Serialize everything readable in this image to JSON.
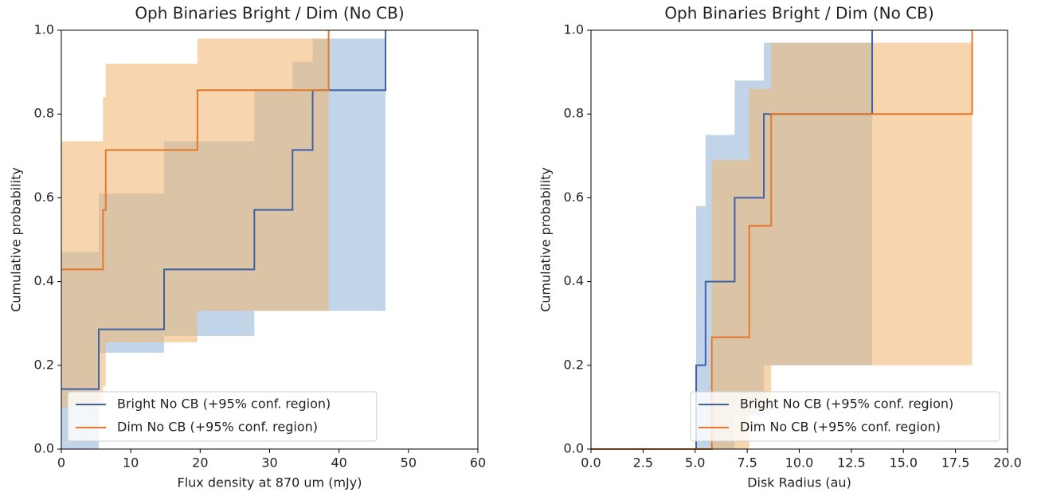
{
  "chart_data": [
    {
      "type": "step",
      "title": "Oph Binaries Bright / Dim (No CB)",
      "xlabel": "Flux density at 870 um (mJy)",
      "ylabel": "Cumulative probability",
      "xlim": [
        0,
        60
      ],
      "ylim": [
        0,
        1
      ],
      "xticks": [
        0,
        10,
        20,
        30,
        40,
        50,
        60
      ],
      "yticks": [
        {
          "value": 0,
          "label": "0.0"
        },
        0.2,
        0.4,
        0.6,
        0.8,
        {
          "value": 1,
          "label": "1.0"
        }
      ],
      "legend": "lower left",
      "series": [
        {
          "name": "Bright No CB (+95% conf. region)",
          "color": "#3d62a8",
          "band_color": "#8fb0d6",
          "x": [
            0,
            5.4,
            14.8,
            27.8,
            33.3,
            36.2,
            46.7
          ],
          "values": [
            0.143,
            0.286,
            0.429,
            0.571,
            0.714,
            0.857,
            1.0
          ],
          "lower": [
            0.0,
            0.23,
            0.27,
            0.33,
            0.33,
            0.33,
            0.33
          ],
          "upper": [
            0.47,
            0.61,
            0.735,
            0.86,
            0.925,
            0.98,
            0.98
          ]
        },
        {
          "name": "Dim No CB (+95% conf. region)",
          "color": "#e6772b",
          "band_color": "#f0b46e",
          "x": [
            0,
            6.0,
            6.4,
            19.6,
            38.5
          ],
          "values": [
            0.429,
            0.571,
            0.714,
            0.857,
            1.0
          ],
          "lower": [
            0.1,
            0.15,
            0.255,
            0.33,
            0.33
          ],
          "upper": [
            0.735,
            0.84,
            0.92,
            0.98,
            0.98
          ]
        }
      ]
    },
    {
      "type": "step",
      "title": "Oph Binaries Bright / Dim (No CB)",
      "xlabel": "Disk Radius (au)",
      "ylabel": "Cumulative probability",
      "xlim": [
        0,
        20
      ],
      "ylim": [
        0,
        1
      ],
      "xticks": [
        {
          "value": 0,
          "label": "0.0"
        },
        2.5,
        {
          "value": 5,
          "label": "5.0"
        },
        7.5,
        {
          "value": 10,
          "label": "10.0"
        },
        12.5,
        {
          "value": 15,
          "label": "15.0"
        },
        17.5,
        {
          "value": 20,
          "label": "20.0"
        }
      ],
      "yticks": [
        {
          "value": 0,
          "label": "0.0"
        },
        0.2,
        0.4,
        0.6,
        0.8,
        {
          "value": 1,
          "label": "1.0"
        }
      ],
      "legend": "lower right",
      "series": [
        {
          "name": "Bright No CB (+95% conf. region)",
          "color": "#3d62a8",
          "band_color": "#8fb0d6",
          "x": [
            0,
            5.05,
            5.5,
            6.9,
            8.3,
            13.5
          ],
          "values": [
            0,
            0.2,
            0.4,
            0.6,
            0.8,
            1.0
          ],
          "lower": [
            0,
            0,
            0,
            0.08,
            0.2,
            0.2
          ],
          "upper": [
            0,
            0.58,
            0.75,
            0.88,
            0.97,
            0.97
          ]
        },
        {
          "name": "Dim No CB (+95% conf. region)",
          "color": "#e6772b",
          "band_color": "#f0b46e",
          "x": [
            0,
            5.8,
            7.6,
            8.65,
            18.3
          ],
          "values": [
            0,
            0.267,
            0.533,
            0.8,
            1.0
          ],
          "lower": [
            0,
            0,
            0.09,
            0.2,
            0.2
          ],
          "upper": [
            0,
            0.69,
            0.86,
            0.97,
            0.97
          ]
        }
      ]
    }
  ]
}
